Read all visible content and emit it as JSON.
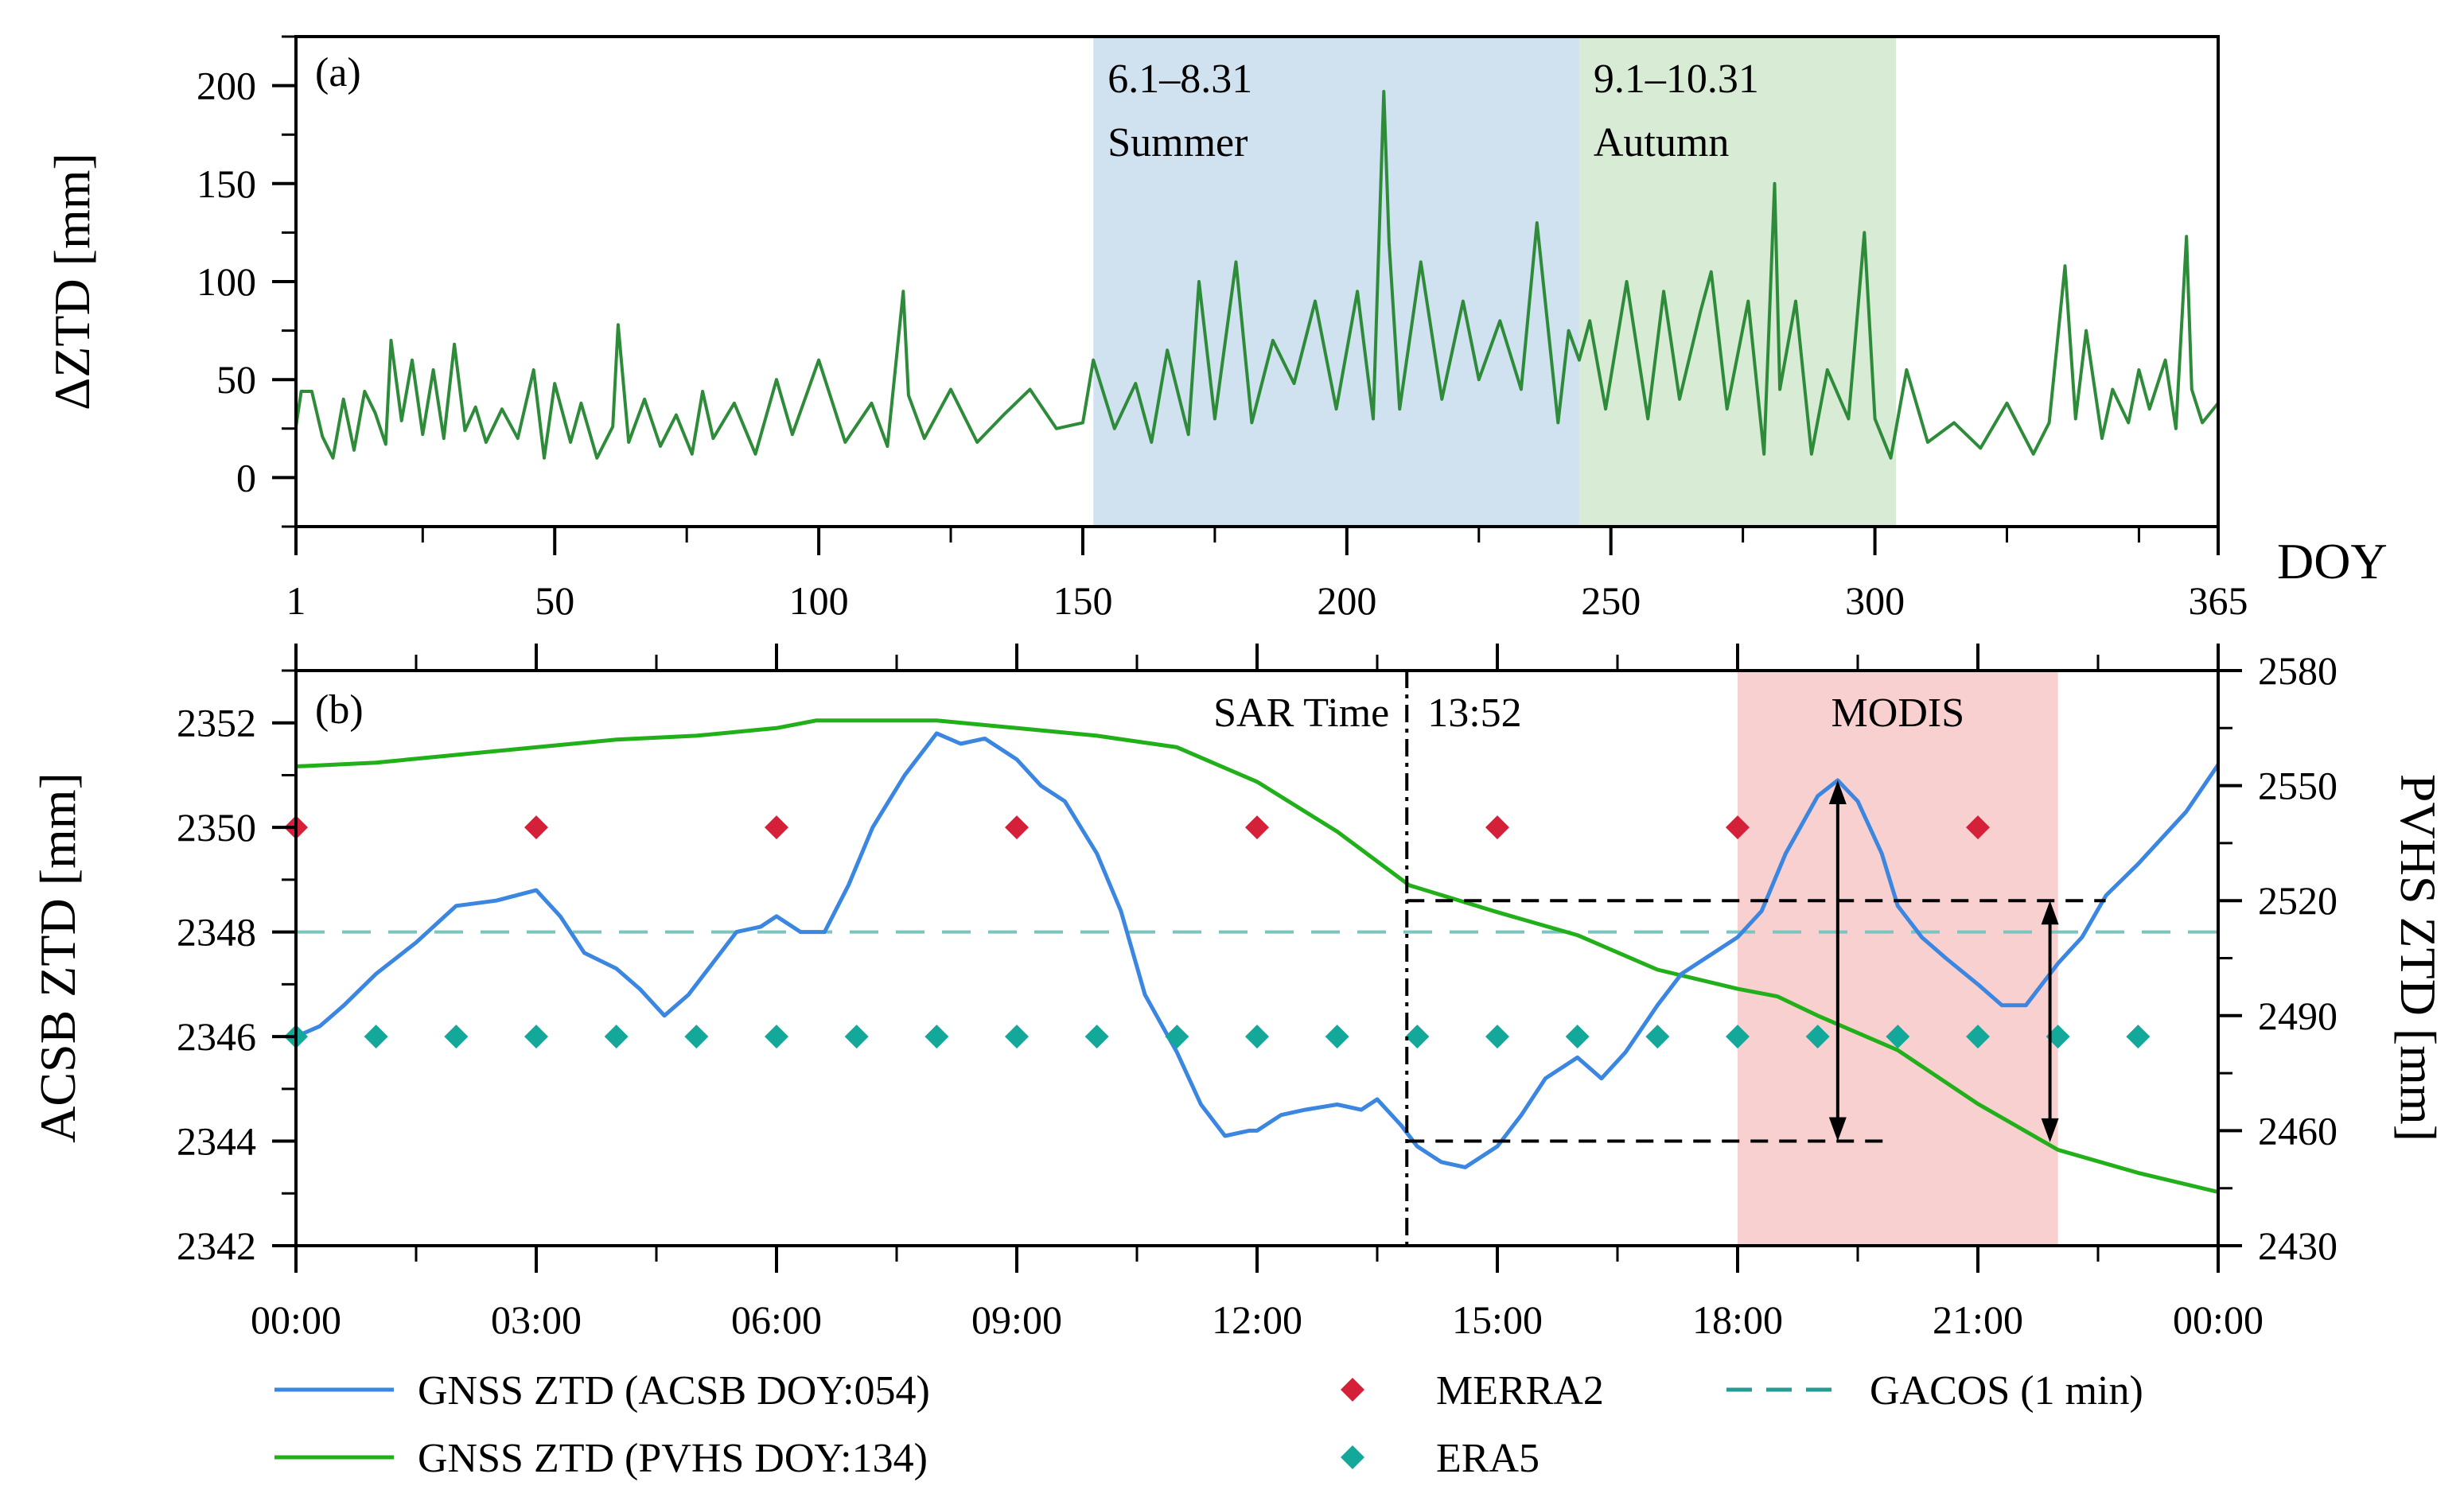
{
  "chart_data": [
    {
      "panel": "(a)",
      "type": "line",
      "xlabel": "DOY",
      "ylabel": "ΔZTD [mm]",
      "xlim": [
        1,
        365
      ],
      "ylim": [
        -25,
        225
      ],
      "xticks": [
        1,
        50,
        100,
        150,
        200,
        250,
        300,
        365
      ],
      "xtick_labels": [
        "1",
        "50",
        "100",
        "150",
        "200",
        "250",
        "300",
        "365"
      ],
      "yticks": [
        0,
        50,
        100,
        150,
        200
      ],
      "ytick_labels": [
        "0",
        "50",
        "100",
        "150",
        "200"
      ],
      "color": "#2e8b3a",
      "shaded_regions": [
        {
          "x0": 152,
          "x1": 244,
          "color": "#d0e1ef",
          "range_label": "6.1–8.31",
          "season_label": "Summer"
        },
        {
          "x0": 244,
          "x1": 304,
          "color": "#d7ebd5",
          "range_label": "9.1–10.31",
          "season_label": "Autumn"
        }
      ],
      "series_keypoints": {
        "x": [
          1,
          2,
          4,
          6,
          8,
          10,
          12,
          14,
          16,
          18,
          19,
          21,
          23,
          25,
          27,
          29,
          31,
          33,
          35,
          37,
          40,
          43,
          46,
          48,
          50,
          53,
          55,
          58,
          61,
          62,
          64,
          67,
          70,
          73,
          76,
          78,
          80,
          84,
          88,
          92,
          95,
          100,
          105,
          110,
          113,
          116,
          117,
          120,
          125,
          130,
          135,
          140,
          145,
          150,
          152,
          156,
          160,
          163,
          166,
          170,
          172,
          175,
          179,
          182,
          186,
          190,
          194,
          198,
          202,
          205,
          207,
          208,
          210,
          214,
          218,
          222,
          225,
          229,
          233,
          236,
          240,
          242,
          244,
          246,
          249,
          253,
          257,
          260,
          263,
          267,
          269,
          272,
          276,
          279,
          281,
          282,
          285,
          288,
          291,
          295,
          298,
          300,
          303,
          306,
          310,
          315,
          320,
          325,
          330,
          333,
          336,
          338,
          340,
          343,
          345,
          348,
          350,
          352,
          355,
          357,
          359,
          360,
          362,
          365
        ],
        "y": [
          26,
          44,
          44,
          21,
          10,
          40,
          14,
          44,
          33,
          17,
          70,
          29,
          60,
          22,
          55,
          20,
          68,
          24,
          36,
          18,
          35,
          20,
          55,
          10,
          48,
          18,
          38,
          10,
          26,
          78,
          18,
          40,
          16,
          32,
          12,
          44,
          20,
          38,
          12,
          50,
          22,
          60,
          18,
          38,
          16,
          95,
          42,
          20,
          45,
          18,
          32,
          45,
          25,
          28,
          60,
          25,
          48,
          18,
          65,
          22,
          100,
          30,
          110,
          28,
          70,
          48,
          90,
          35,
          95,
          30,
          197,
          120,
          35,
          110,
          40,
          90,
          50,
          80,
          45,
          130,
          28,
          75,
          60,
          80,
          35,
          100,
          30,
          95,
          40,
          85,
          105,
          35,
          90,
          12,
          150,
          45,
          90,
          12,
          55,
          30,
          125,
          30,
          10,
          55,
          18,
          28,
          15,
          38,
          12,
          28,
          108,
          30,
          75,
          20,
          45,
          28,
          55,
          35,
          60,
          25,
          123,
          45,
          28,
          38
        ]
      }
    },
    {
      "panel": "(b)",
      "type": "line",
      "xlabel": "",
      "ylabel_left": "ACSB ZTD [mm]",
      "ylabel_right": "PVHS ZTD [mm]",
      "xlim_hours": [
        0,
        24
      ],
      "ylim_left": [
        2342,
        2353
      ],
      "ylim_right": [
        2430,
        2580
      ],
      "xticks_hours": [
        0,
        3,
        6,
        9,
        12,
        15,
        18,
        21,
        24
      ],
      "xtick_labels": [
        "00:00",
        "03:00",
        "06:00",
        "09:00",
        "12:00",
        "15:00",
        "18:00",
        "21:00",
        "00:00"
      ],
      "yticks_left": [
        2342,
        2344,
        2346,
        2348,
        2350,
        2352
      ],
      "ytick_labels_left": [
        "2342",
        "2344",
        "2346",
        "2348",
        "2350",
        "2352"
      ],
      "yticks_right": [
        2430,
        2460,
        2490,
        2520,
        2550,
        2580
      ],
      "ytick_labels_right": [
        "2430",
        "2460",
        "2490",
        "2520",
        "2550",
        "2580"
      ],
      "sar_time_hours": 13.87,
      "sar_label_left": "SAR Time",
      "sar_label_right": "13:52",
      "modis_region_hours": [
        18,
        22
      ],
      "modis_label": "MODIS",
      "modis_color": "#f9d0d0",
      "acsb_range_arrow": {
        "x_hours": 19.25,
        "from": 2344.0,
        "to": 2350.9
      },
      "pvhs_range_arrow": {
        "x_hours": 21.9,
        "from_right": 2457,
        "to_right": 2520
      },
      "series": [
        {
          "name": "GNSS ZTD (ACSB DOY:054)",
          "axis": "left",
          "color": "#3a86e0",
          "x_hours": [
            0,
            0.3,
            0.6,
            1.0,
            1.5,
            2.0,
            2.5,
            3.0,
            3.3,
            3.6,
            4.0,
            4.3,
            4.6,
            4.9,
            5.2,
            5.5,
            5.8,
            6.0,
            6.3,
            6.6,
            6.9,
            7.2,
            7.6,
            8.0,
            8.3,
            8.6,
            9.0,
            9.3,
            9.6,
            10.0,
            10.3,
            10.6,
            11.0,
            11.3,
            11.6,
            11.9,
            12.0,
            12.3,
            12.6,
            13.0,
            13.3,
            13.5,
            13.8,
            14.0,
            14.3,
            14.6,
            15.0,
            15.3,
            15.6,
            16.0,
            16.3,
            16.6,
            17.0,
            17.3,
            17.6,
            18.0,
            18.3,
            18.6,
            19.0,
            19.25,
            19.5,
            19.8,
            20.0,
            20.3,
            20.6,
            21.0,
            21.3,
            21.6,
            22.0,
            22.3,
            22.6,
            23.0,
            23.3,
            23.6,
            24.0
          ],
          "y": [
            2346.0,
            2346.2,
            2346.6,
            2347.2,
            2347.8,
            2348.5,
            2348.6,
            2348.8,
            2348.3,
            2347.6,
            2347.3,
            2346.9,
            2346.4,
            2346.8,
            2347.4,
            2348.0,
            2348.1,
            2348.3,
            2348.0,
            2348.0,
            2348.9,
            2350.0,
            2351.0,
            2351.8,
            2351.6,
            2351.7,
            2351.3,
            2350.8,
            2350.5,
            2349.5,
            2348.4,
            2346.8,
            2345.7,
            2344.7,
            2344.1,
            2344.2,
            2344.2,
            2344.5,
            2344.6,
            2344.7,
            2344.6,
            2344.8,
            2344.3,
            2343.9,
            2343.6,
            2343.5,
            2343.9,
            2344.5,
            2345.2,
            2345.6,
            2345.2,
            2345.7,
            2346.6,
            2347.2,
            2347.5,
            2347.9,
            2348.4,
            2349.5,
            2350.6,
            2350.9,
            2350.5,
            2349.5,
            2348.5,
            2347.9,
            2347.5,
            2347.0,
            2346.6,
            2346.6,
            2347.4,
            2347.9,
            2348.7,
            2349.3,
            2349.8,
            2350.3,
            2351.2
          ]
        },
        {
          "name": "GNSS ZTD (PVHS DOY:134)",
          "axis": "right",
          "color": "#22b01a",
          "x_hours": [
            0,
            1,
            2,
            3,
            4,
            5,
            6,
            6.5,
            7,
            8,
            9,
            10,
            11,
            12,
            13,
            13.9,
            15,
            16,
            17,
            18,
            18.5,
            19,
            20,
            21,
            22,
            23,
            24
          ],
          "y": [
            2555,
            2556,
            2558,
            2560,
            2562,
            2563,
            2565,
            2567,
            2567,
            2567,
            2565,
            2563,
            2560,
            2551,
            2538,
            2524,
            2517,
            2511,
            2502,
            2497,
            2495,
            2490,
            2481,
            2467,
            2455,
            2449,
            2444
          ]
        },
        {
          "name": "MERRA2",
          "axis": "left",
          "type": "scatter",
          "marker": "diamond",
          "color": "#d42038",
          "x_hours": [
            0,
            3,
            6,
            9,
            12,
            15,
            18,
            21
          ],
          "y": [
            2350,
            2350,
            2350,
            2350,
            2350,
            2350,
            2350,
            2350
          ]
        },
        {
          "name": "ERA5",
          "axis": "left",
          "type": "scatter",
          "marker": "diamond",
          "color": "#14a89a",
          "x_hours": [
            0,
            1,
            2,
            3,
            4,
            5,
            6,
            7,
            8,
            9,
            10,
            11,
            12,
            13,
            14,
            15,
            16,
            17,
            18,
            19,
            20,
            21,
            22,
            23
          ],
          "y": [
            2346,
            2346,
            2346,
            2346,
            2346,
            2346,
            2346,
            2346,
            2346,
            2346,
            2346,
            2346,
            2346,
            2346,
            2346,
            2346,
            2346,
            2346,
            2346,
            2346,
            2346,
            2346,
            2346,
            2346
          ]
        },
        {
          "name": "GACOS (1 min)",
          "axis": "left",
          "type": "hline",
          "style": "dashed",
          "color": "#7cc4bf",
          "y": 2348
        }
      ],
      "legend": [
        {
          "label": "GNSS ZTD (ACSB DOY:054)",
          "kind": "line",
          "color": "#3a86e0"
        },
        {
          "label": "MERRA2",
          "kind": "diamond",
          "color": "#d42038"
        },
        {
          "label": "GACOS (1 min)",
          "kind": "dashed",
          "color": "#2a9a92"
        },
        {
          "label": "GNSS ZTD (PVHS DOY:134)",
          "kind": "line",
          "color": "#22b01a"
        },
        {
          "label": "ERA5",
          "kind": "diamond",
          "color": "#14a89a"
        }
      ]
    }
  ]
}
